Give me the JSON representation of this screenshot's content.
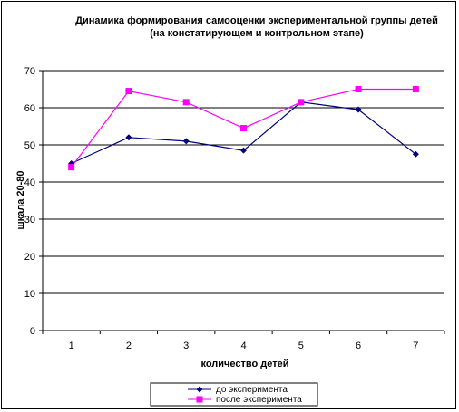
{
  "chart_data": {
    "type": "line",
    "title": [
      "Динамика формирования самооценки экспериментальной группы детей",
      "(на констатирующем и контрольном этапе)"
    ],
    "xlabel": "количество детей",
    "ylabel": "шкала 20-80",
    "categories": [
      "1",
      "2",
      "3",
      "4",
      "5",
      "6",
      "7"
    ],
    "ylim": [
      0,
      70
    ],
    "yticks": [
      0,
      10,
      20,
      30,
      40,
      50,
      60,
      70
    ],
    "grid": true,
    "legend_position": "bottom",
    "series": [
      {
        "name": "до эксперимента",
        "values": [
          45,
          52,
          51,
          48.5,
          61.5,
          59.5,
          47.5
        ],
        "color": "#000080",
        "marker": "diamond"
      },
      {
        "name": "после эксперимента",
        "values": [
          44,
          64.5,
          61.5,
          54.5,
          61.5,
          65,
          65
        ],
        "color": "#FF00FF",
        "marker": "square"
      }
    ]
  }
}
